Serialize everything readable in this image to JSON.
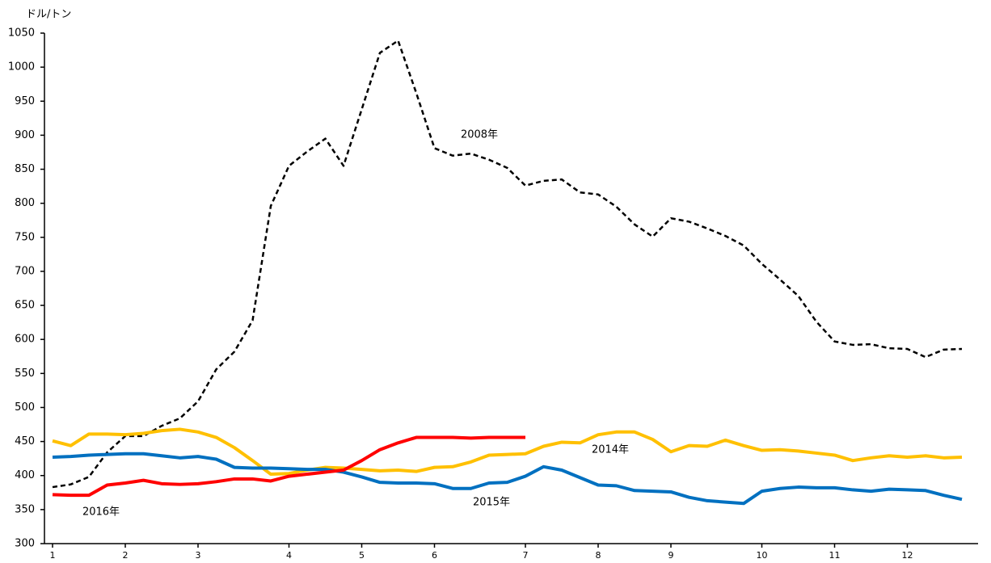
{
  "chart_data": {
    "type": "line",
    "ylabel": "ドル/トン",
    "categories": [
      "1",
      null,
      null,
      null,
      "2",
      null,
      null,
      null,
      "3",
      null,
      null,
      null,
      null,
      "4",
      null,
      null,
      null,
      "5",
      null,
      null,
      null,
      "6",
      null,
      null,
      null,
      null,
      "7",
      null,
      null,
      null,
      "8",
      null,
      null,
      null,
      "9",
      null,
      null,
      null,
      null,
      "10",
      null,
      null,
      null,
      "11",
      null,
      null,
      null,
      "12",
      null,
      null,
      null
    ],
    "ylim": [
      300,
      1050
    ],
    "yticks": [
      300,
      350,
      400,
      450,
      500,
      550,
      600,
      650,
      700,
      750,
      800,
      850,
      900,
      950,
      1000,
      1050
    ],
    "grid": false,
    "series": [
      {
        "name": "2008年",
        "color": "#000000",
        "dashed": true,
        "values": [
          383,
          387,
          398,
          434,
          458,
          458,
          473,
          484,
          509,
          556,
          582,
          628,
          796,
          855,
          876,
          895,
          855,
          938,
          1021,
          1039,
          962,
          881,
          870,
          873,
          864,
          852,
          826,
          833,
          835,
          816,
          813,
          795,
          769,
          751,
          778,
          773,
          763,
          752,
          738,
          711,
          688,
          664,
          626,
          597,
          592,
          593,
          587,
          586,
          574,
          585,
          586
        ]
      },
      {
        "name": "2014年",
        "color": "#FFC000",
        "dashed": false,
        "values": [
          451,
          444,
          461,
          461,
          460,
          462,
          466,
          468,
          464,
          456,
          441,
          422,
          402,
          403,
          408,
          412,
          411,
          409,
          407,
          408,
          406,
          412,
          413,
          420,
          430,
          431,
          432,
          443,
          449,
          448,
          460,
          464,
          464,
          453,
          435,
          444,
          443,
          452,
          444,
          437,
          438,
          436,
          433,
          430,
          422,
          426,
          429,
          427,
          429,
          426,
          427
        ]
      },
      {
        "name": "2015年",
        "color": "#0070C0",
        "dashed": false,
        "values": [
          427,
          428,
          430,
          431,
          432,
          432,
          429,
          426,
          428,
          424,
          412,
          411,
          411,
          410,
          409,
          409,
          405,
          398,
          390,
          389,
          389,
          388,
          381,
          381,
          389,
          390,
          399,
          413,
          408,
          397,
          386,
          385,
          378,
          377,
          376,
          368,
          363,
          361,
          359,
          377,
          381,
          383,
          382,
          382,
          379,
          377,
          380,
          379,
          378,
          371,
          365
        ]
      },
      {
        "name": "2016年",
        "color": "#FF0000",
        "dashed": false,
        "values": [
          372,
          371,
          371,
          386,
          389,
          393,
          388,
          387,
          388,
          391,
          395,
          395,
          392,
          399,
          402,
          405,
          408,
          422,
          438,
          448,
          456,
          456,
          456,
          455,
          456,
          456,
          456,
          null,
          null,
          null,
          null,
          null,
          null,
          null,
          null,
          null,
          null,
          null,
          null,
          null,
          null,
          null,
          null,
          null,
          null,
          null,
          null,
          null,
          null,
          null,
          null
        ]
      }
    ]
  }
}
